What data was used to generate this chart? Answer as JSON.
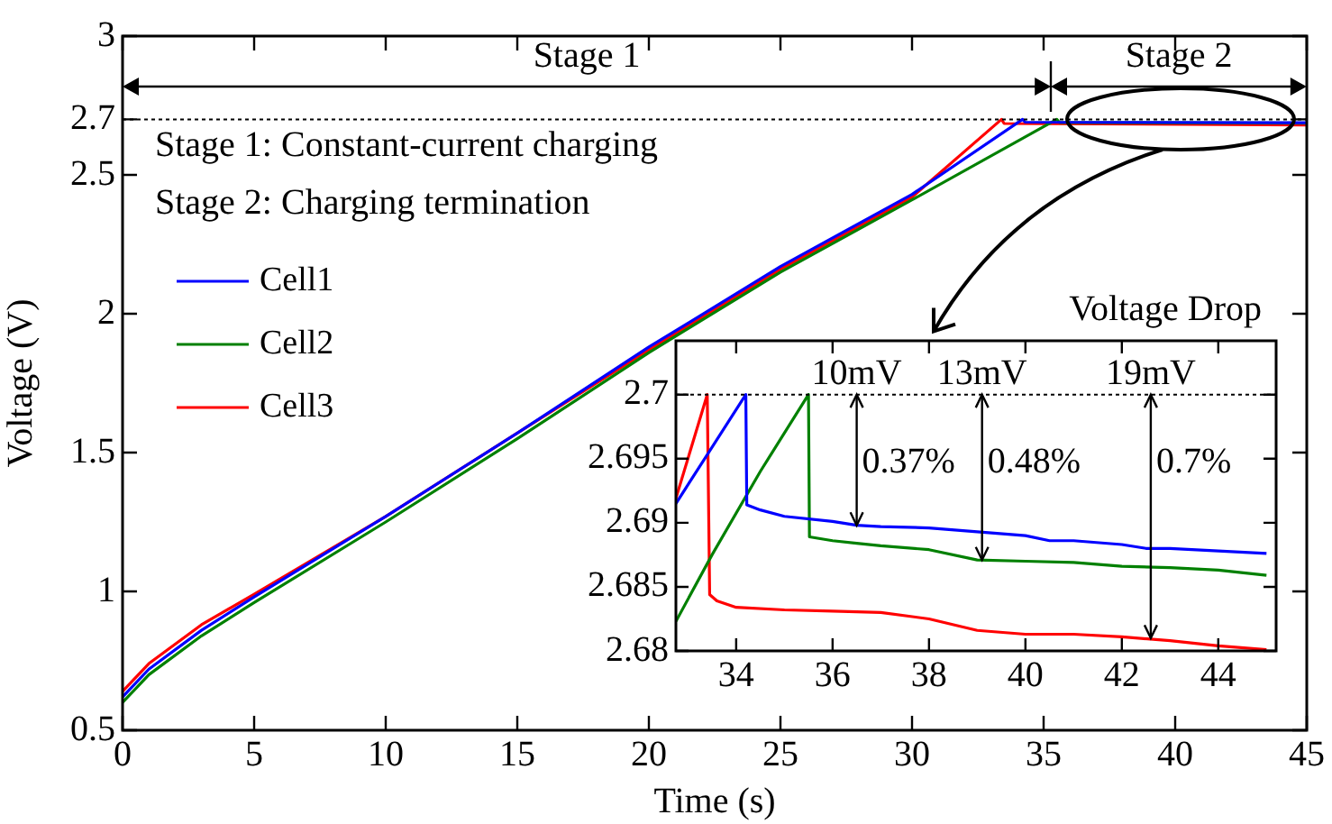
{
  "chart_data": [
    {
      "type": "line",
      "xlabel": "Time (s)",
      "ylabel": "Voltage (V)",
      "xlim": [
        0,
        45
      ],
      "ylim": [
        0.5,
        3
      ],
      "xticks": [
        0,
        5,
        10,
        15,
        20,
        25,
        30,
        35,
        40,
        45
      ],
      "yticks": [
        0.5,
        1,
        1.5,
        2,
        2.5,
        2.7,
        3
      ],
      "legend": "left",
      "series": [
        {
          "name": "Cell1",
          "color": "#0000ff",
          "x": [
            0,
            1,
            3,
            5,
            10,
            15,
            20,
            25,
            30,
            34.2,
            34.3,
            45
          ],
          "values": [
            0.62,
            0.72,
            0.86,
            0.98,
            1.27,
            1.57,
            1.88,
            2.17,
            2.43,
            2.7,
            2.69,
            2.688
          ]
        },
        {
          "name": "Cell2",
          "color": "#008000",
          "x": [
            0,
            1,
            3,
            5,
            10,
            15,
            20,
            25,
            30,
            35.5,
            35.6,
            45
          ],
          "values": [
            0.6,
            0.7,
            0.84,
            0.96,
            1.25,
            1.55,
            1.86,
            2.15,
            2.41,
            2.7,
            2.689,
            2.686
          ]
        },
        {
          "name": "Cell3",
          "color": "#ff0000",
          "x": [
            0,
            1,
            3,
            5,
            10,
            15,
            20,
            25,
            30,
            33.4,
            33.5,
            45
          ],
          "values": [
            0.64,
            0.74,
            0.88,
            0.99,
            1.27,
            1.57,
            1.87,
            2.16,
            2.42,
            2.7,
            2.685,
            2.68
          ]
        }
      ],
      "ref_lines": [
        {
          "axis": "y",
          "value": 2.7,
          "line_style": "dotted",
          "color": "#000000"
        }
      ],
      "annotations": [
        "Stage 1",
        "Stage 2",
        "Stage 1: Constant-current charging",
        "Stage 2: Charging termination"
      ]
    },
    {
      "type": "line",
      "title": "Voltage Drop",
      "xlim": [
        32.75,
        45.2
      ],
      "ylim": [
        2.68,
        2.7042
      ],
      "xticks": [
        34,
        36,
        38,
        40,
        42,
        44
      ],
      "yticks": [
        2.68,
        2.685,
        2.69,
        2.695,
        2.7
      ],
      "series": [
        {
          "color": "#0000ff",
          "x": [
            32.75,
            34.2,
            34.22,
            34.5,
            35,
            36,
            36.5,
            37,
            38,
            39,
            40,
            40.5,
            41,
            42,
            42.5,
            43,
            44,
            45
          ],
          "values": [
            2.6915,
            2.7,
            2.6914,
            2.691,
            2.6905,
            2.6901,
            2.6898,
            2.6897,
            2.6896,
            2.6893,
            2.689,
            2.6886,
            2.6886,
            2.6883,
            2.688,
            2.688,
            2.6878,
            2.6876
          ]
        },
        {
          "color": "#008000",
          "x": [
            32.75,
            33.5,
            34.5,
            35.5,
            35.52,
            36,
            36.5,
            37,
            38,
            39,
            40,
            41,
            42,
            43,
            44,
            45
          ],
          "values": [
            2.6823,
            2.6875,
            2.694,
            2.7,
            2.6889,
            2.6886,
            2.6884,
            2.6882,
            2.6879,
            2.6871,
            2.687,
            2.6869,
            2.6866,
            2.6865,
            2.6863,
            2.6859
          ]
        },
        {
          "color": "#ff0000",
          "x": [
            32.75,
            33.4,
            33.45,
            33.6,
            34,
            35,
            36,
            37,
            38,
            39,
            40,
            41,
            42,
            43,
            44,
            45
          ],
          "values": [
            2.6919,
            2.7,
            2.6844,
            2.6839,
            2.6834,
            2.6832,
            2.6831,
            2.683,
            2.6825,
            2.6816,
            2.6813,
            2.6813,
            2.6811,
            2.6808,
            2.6804,
            2.6801
          ]
        }
      ],
      "ref_lines": [
        {
          "axis": "y",
          "value": 2.7,
          "line_style": "dotted",
          "color": "#000000"
        }
      ],
      "annotations": [
        {
          "text": "10mV",
          "x": 36.5,
          "y": 2.6898
        },
        "0.37%",
        {
          "text": "13mV",
          "x": 39.1,
          "y": 2.6871
        },
        "0.48%",
        {
          "text": "19mV",
          "x": 42.6,
          "y": 2.681
        },
        "0.7%"
      ]
    }
  ]
}
